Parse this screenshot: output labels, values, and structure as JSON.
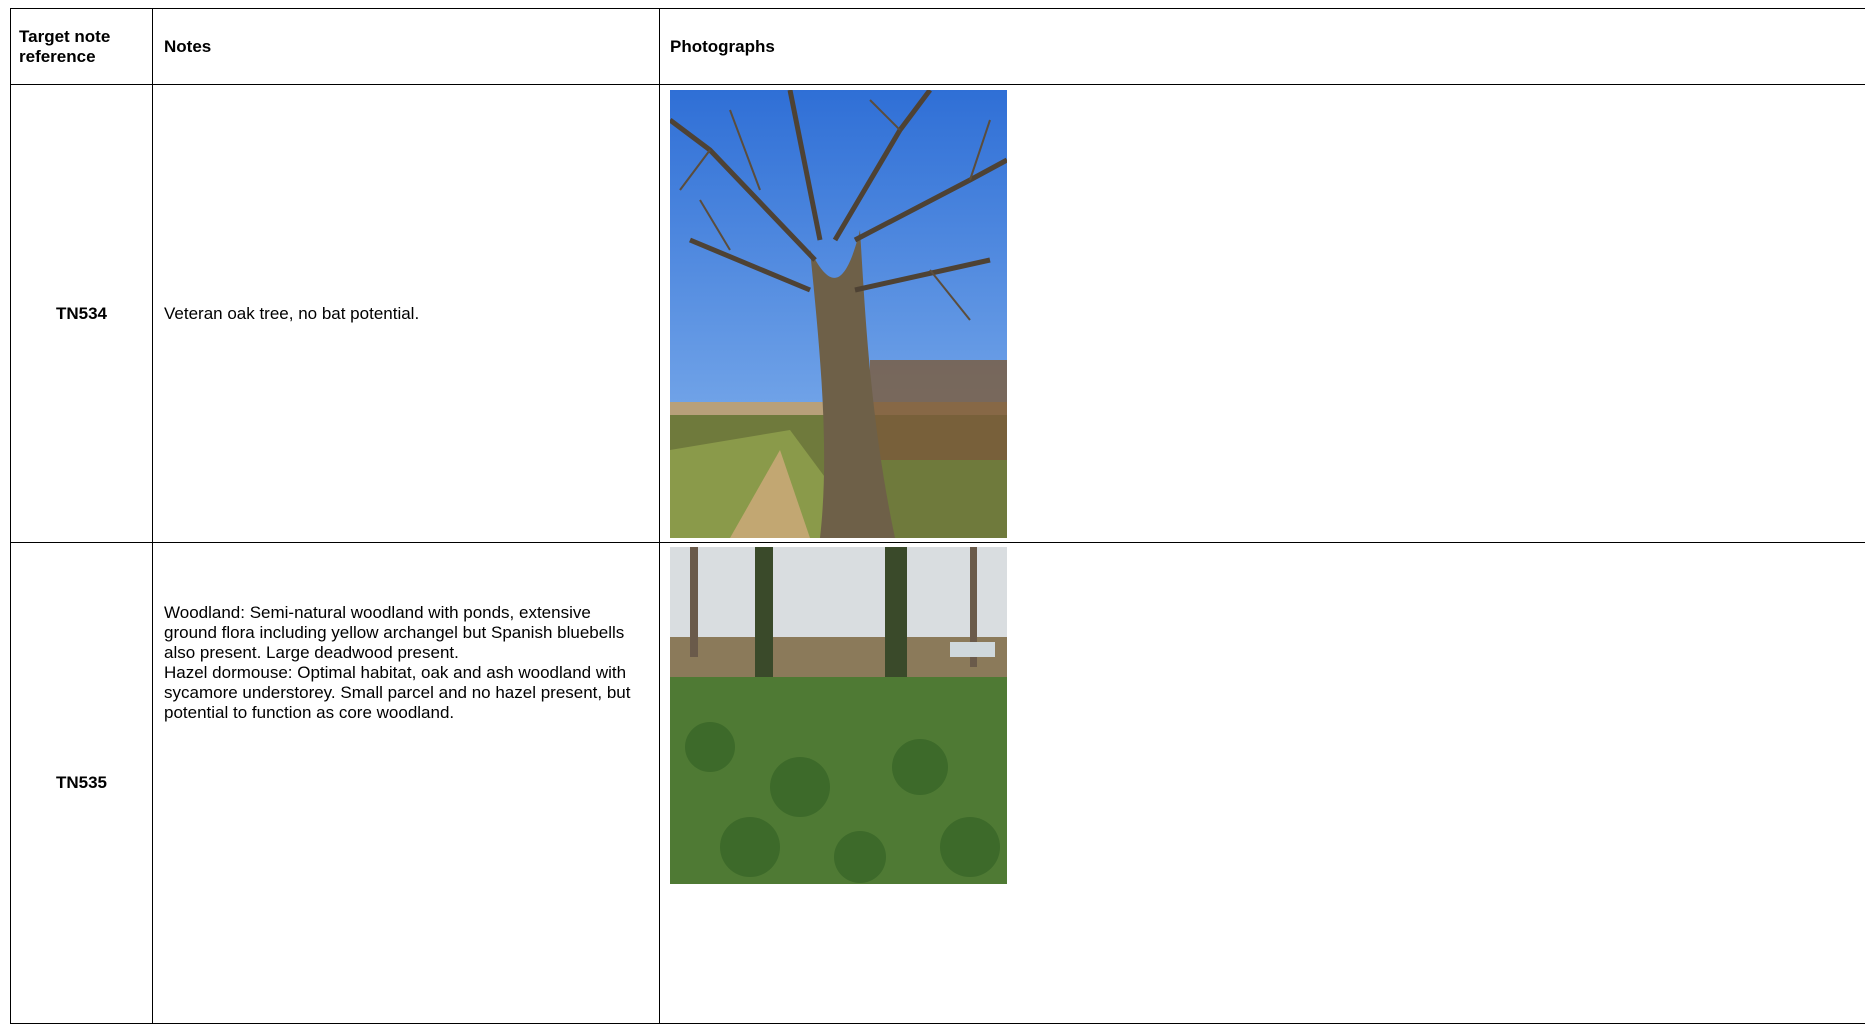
{
  "table": {
    "header": [
      "Target note reference",
      "Notes",
      "Photographs"
    ],
    "rows": [
      {
        "ref": "TN534",
        "notes": [
          "Veteran oak tree, no bat potential."
        ]
      },
      {
        "ref": "TN535",
        "notes": [
          "Woodland: Semi-natural woodland with ponds, extensive ground flora including yellow archangel but Spanish bluebells also present. Large deadwood present.",
          "Hazel dormouse: Optimal habitat, oak and ash woodland with sycamore understorey. Small parcel and no hazel present, but potential to function as core woodland."
        ]
      }
    ]
  }
}
